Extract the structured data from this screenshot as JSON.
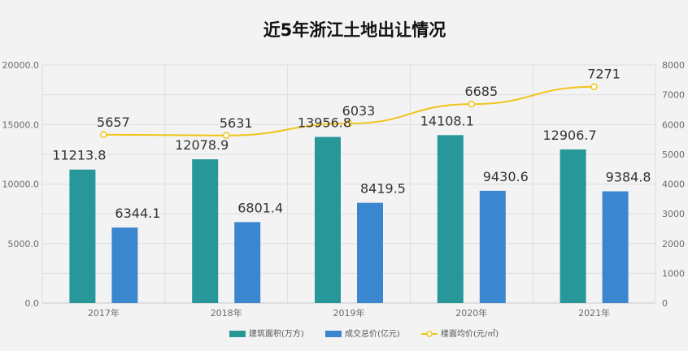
{
  "chart_data": {
    "type": "bar",
    "title": "近5年浙江土地出让情况",
    "categories": [
      "2017年",
      "2018年",
      "2019年",
      "2020年",
      "2021年"
    ],
    "series": [
      {
        "name": "建筑面积(万方)",
        "kind": "bar",
        "axis": "left",
        "color": "#27979a",
        "values": [
          11213.8,
          12078.9,
          13956.8,
          14108.1,
          12906.7
        ],
        "labels": [
          "11213.8",
          "12078.9",
          "13956.8",
          "14108.1",
          "12906.7"
        ]
      },
      {
        "name": "成交总价(亿元)",
        "kind": "bar",
        "axis": "left",
        "color": "#3a87d0",
        "values": [
          6344.1,
          6801.4,
          8419.5,
          9430.6,
          9384.8
        ],
        "labels": [
          "6344.1",
          "6801.4",
          "8419.5",
          "9430.6",
          "9384.8"
        ]
      },
      {
        "name": "楼面均价(元/㎡)",
        "kind": "line",
        "axis": "right",
        "color": "#f0c419",
        "values": [
          5657,
          5631,
          6033,
          6685,
          7271
        ],
        "labels": [
          "5657",
          "5631",
          "6033",
          "6685",
          "7271"
        ]
      }
    ],
    "y_left": {
      "min": 0,
      "max": 20000,
      "ticks": [
        "0.0",
        "5000.0",
        "10000.0",
        "15000.0",
        "20000.0"
      ]
    },
    "y_right": {
      "min": 0,
      "max": 8000,
      "ticks": [
        "0",
        "1000",
        "2000",
        "3000",
        "4000",
        "5000",
        "6000",
        "7000",
        "8000"
      ]
    },
    "grid": true,
    "legend_position": "bottom-center"
  }
}
